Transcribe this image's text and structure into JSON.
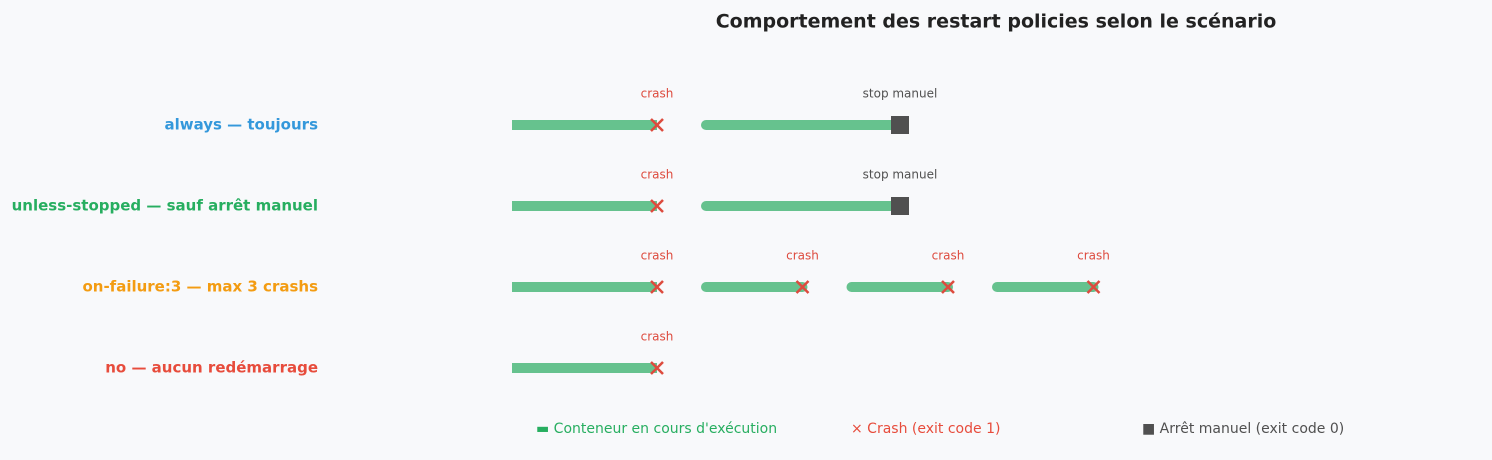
{
  "title": "Comportement des restart policies selon le scénario",
  "colors": {
    "running": "#66c28e",
    "crash": "#dd4b3e",
    "stop": "#505050"
  },
  "rows": [
    {
      "label": "always — toujours",
      "color": "#3498db",
      "events": [
        {
          "kind": "crash",
          "label": "crash"
        },
        {
          "kind": "stop",
          "label": "stop manuel"
        }
      ]
    },
    {
      "label": "unless-stopped — sauf arrêt manuel",
      "color": "#27ae60",
      "events": [
        {
          "kind": "crash",
          "label": "crash"
        },
        {
          "kind": "stop",
          "label": "stop manuel"
        }
      ]
    },
    {
      "label": "on-failure:3 — max 3 crashs",
      "color": "#f39c12",
      "events": [
        {
          "kind": "crash",
          "label": "crash"
        },
        {
          "kind": "crash",
          "label": "crash"
        },
        {
          "kind": "crash",
          "label": "crash"
        },
        {
          "kind": "crash",
          "label": "crash"
        }
      ]
    },
    {
      "label": "no — aucun redémarrage",
      "color": "#e74c3c",
      "events": [
        {
          "kind": "crash",
          "label": "crash"
        }
      ]
    }
  ],
  "legend": [
    {
      "label": "▬ Conteneur en cours d'exécution",
      "color": "#27ae60"
    },
    {
      "label": "× Crash (exit code 1)",
      "color": "#e74c3c"
    },
    {
      "label": "■ Arrêt manuel (exit code 0)",
      "color": "#505050"
    }
  ]
}
